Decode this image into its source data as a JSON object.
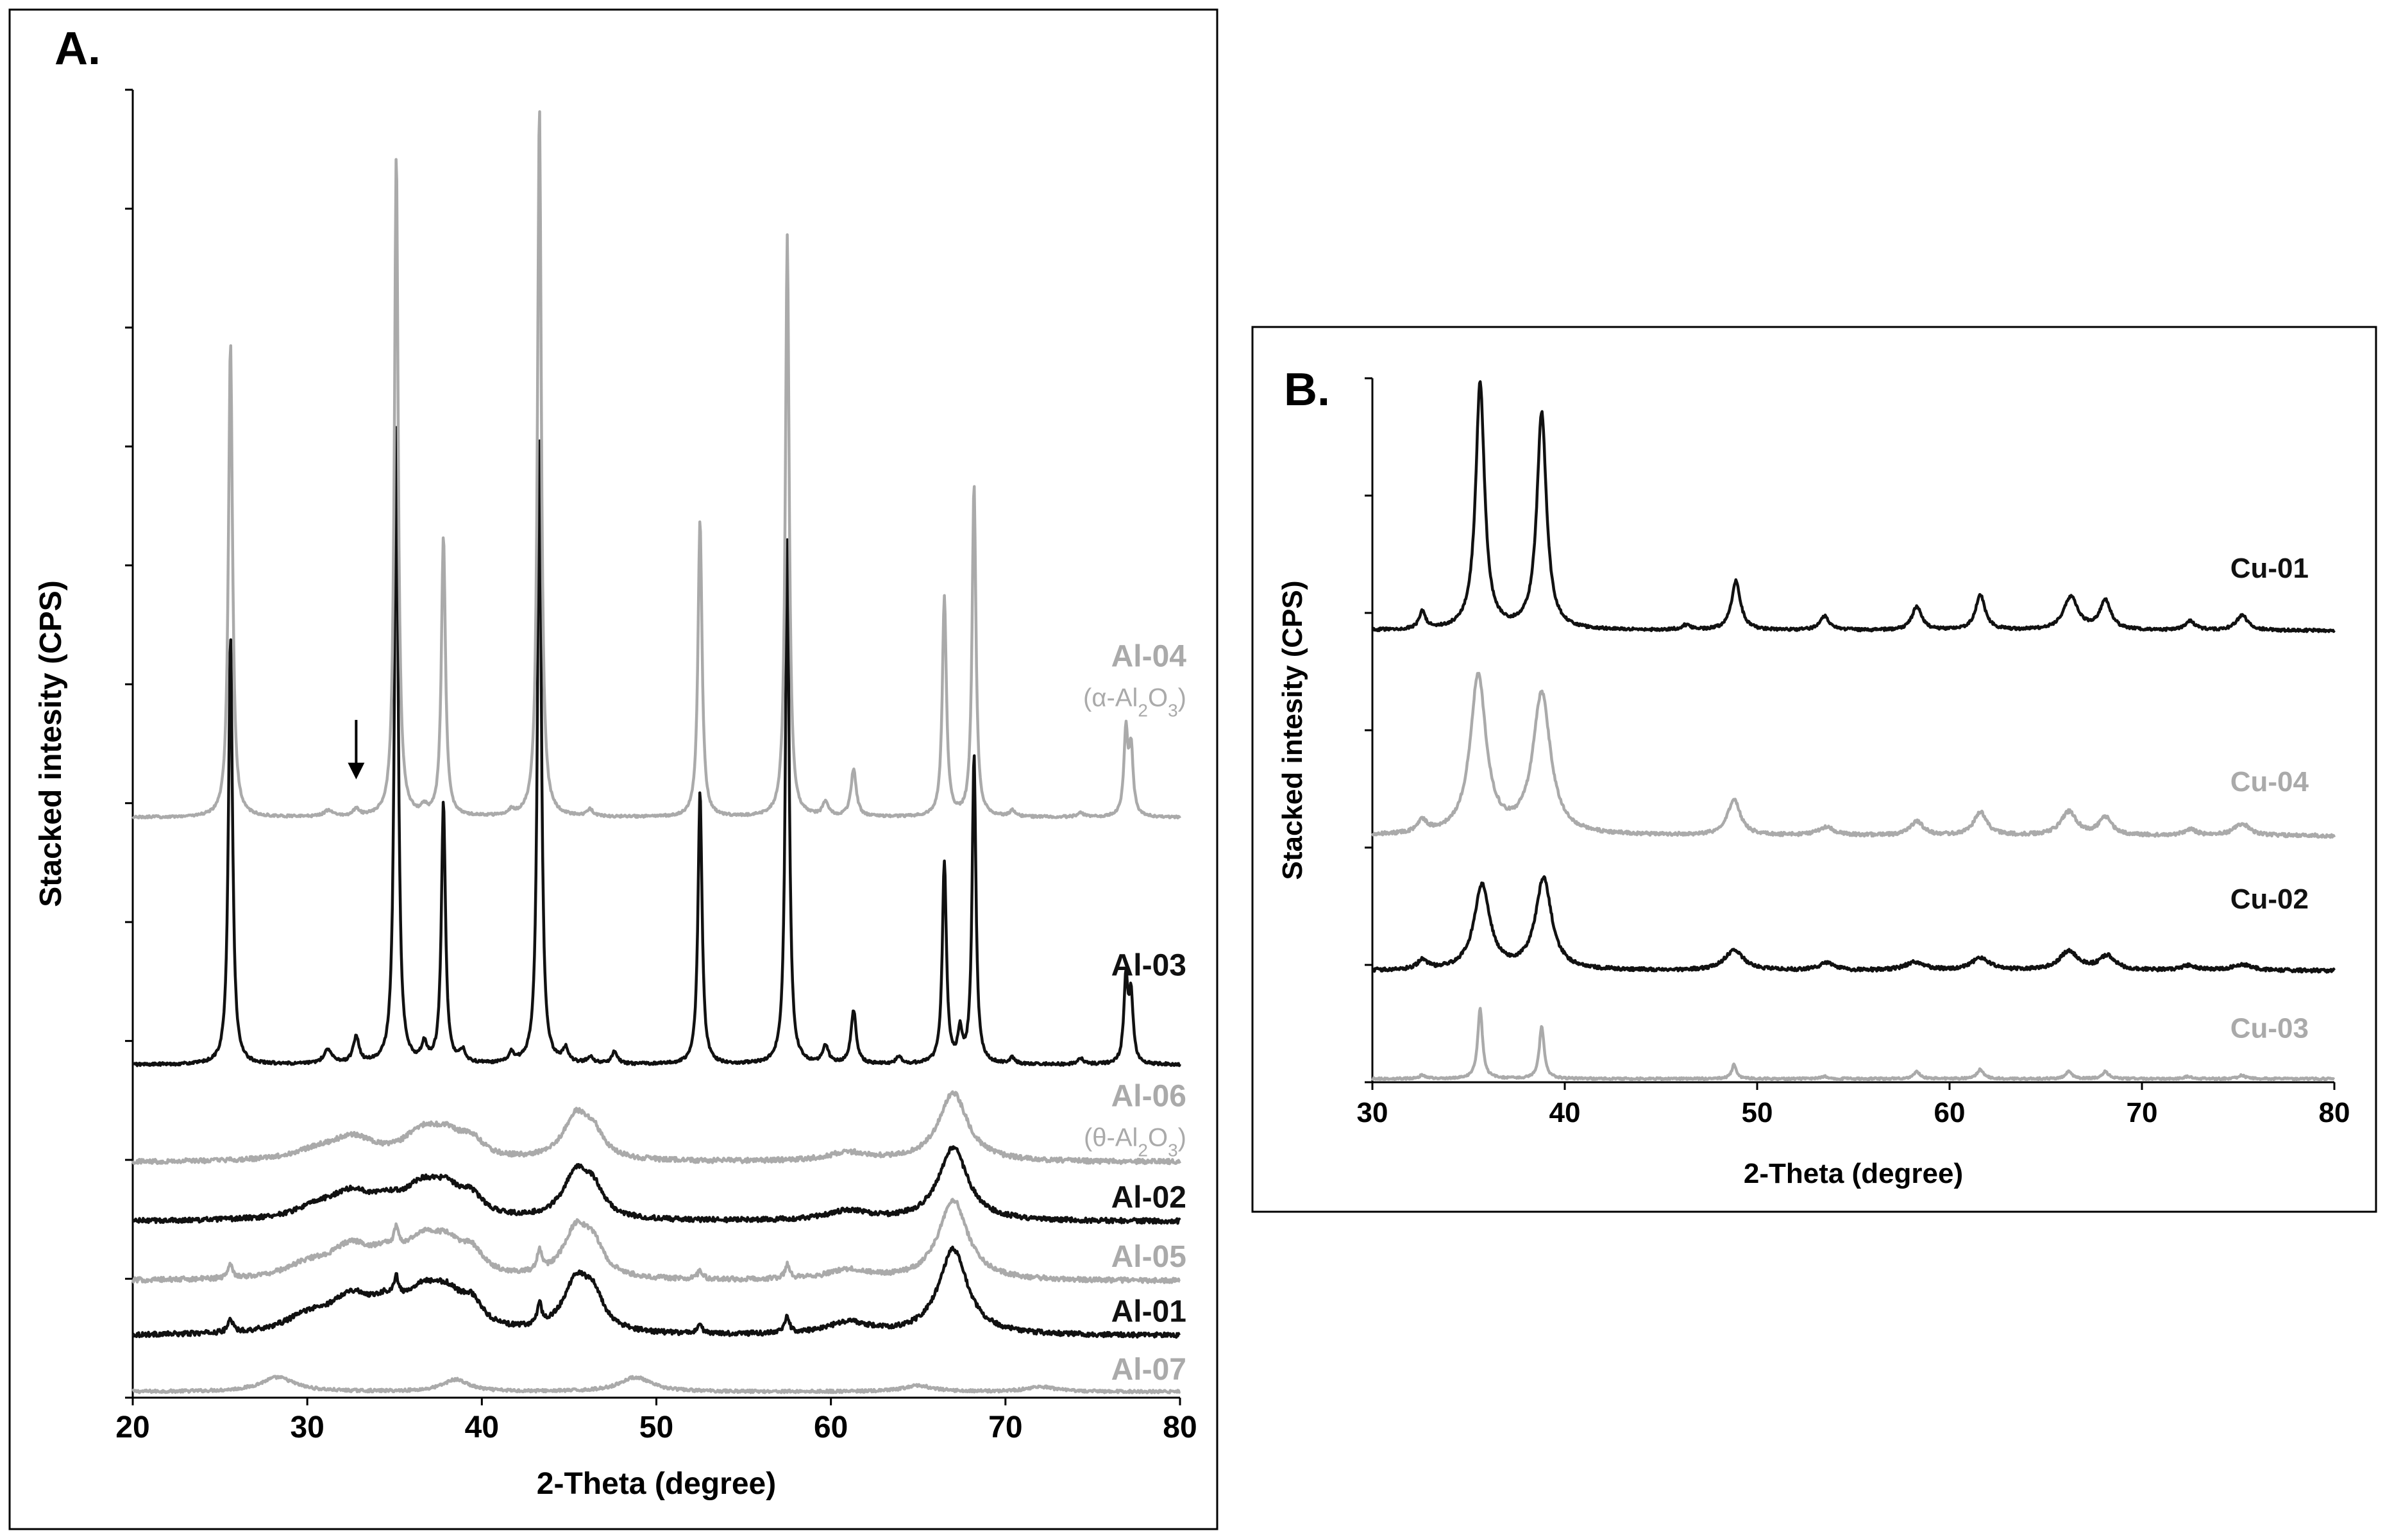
{
  "chart_data": [
    {
      "type": "line",
      "panel": "A.",
      "title": "",
      "xlabel": "2-Theta (degree)",
      "ylabel": "Stacked intesity (CPS)",
      "xlim": [
        20,
        80
      ],
      "x_ticks": [
        "20",
        "30",
        "40",
        "50",
        "60",
        "70",
        "80"
      ],
      "ylim": [
        0,
        11
      ],
      "y_tick_count": 11,
      "y_tick_labels_shown": false,
      "grid": false,
      "annotations": [
        {
          "type": "arrow",
          "x": 32.8,
          "y_from": 5.7,
          "y_to": 5.2
        }
      ],
      "series": [
        {
          "name": "Al-07",
          "phase": "",
          "color": "#aaaaaa",
          "baseline": 0.05,
          "noise": 0.012,
          "label_y": 0.15,
          "peaks": [
            [
              28.3,
              0.12,
              1.2
            ],
            [
              38.5,
              0.1,
              0.9
            ],
            [
              48.8,
              0.12,
              1.1
            ],
            [
              65.0,
              0.05,
              1.0
            ],
            [
              72.0,
              0.04,
              1.0
            ]
          ]
        },
        {
          "name": "Al-01",
          "phase": "",
          "color": "#111111",
          "baseline": 0.52,
          "noise": 0.02,
          "label_y": 0.64,
          "peaks": [
            [
              30.0,
              0.12,
              1.5
            ],
            [
              32.5,
              0.28,
              1.5
            ],
            [
              34.5,
              0.15,
              1.0
            ],
            [
              36.6,
              0.3,
              1.3
            ],
            [
              38.0,
              0.22,
              1.0
            ],
            [
              39.4,
              0.2,
              0.8
            ],
            [
              45.4,
              0.42,
              0.9
            ],
            [
              46.4,
              0.25,
              0.7
            ],
            [
              61.0,
              0.1,
              1.5
            ],
            [
              67.0,
              0.72,
              1.0
            ],
            [
              25.6,
              0.12,
              0.15
            ],
            [
              35.1,
              0.16,
              0.15
            ],
            [
              43.3,
              0.18,
              0.15
            ],
            [
              52.5,
              0.08,
              0.15
            ],
            [
              57.5,
              0.14,
              0.15
            ]
          ]
        },
        {
          "name": "Al-05",
          "phase": "",
          "color": "#aaaaaa",
          "baseline": 0.98,
          "noise": 0.02,
          "label_y": 1.1,
          "peaks": [
            [
              30.0,
              0.1,
              1.5
            ],
            [
              32.5,
              0.25,
              1.5
            ],
            [
              34.5,
              0.12,
              1.0
            ],
            [
              36.6,
              0.28,
              1.3
            ],
            [
              38.0,
              0.2,
              1.0
            ],
            [
              39.4,
              0.18,
              0.8
            ],
            [
              45.4,
              0.4,
              0.9
            ],
            [
              46.4,
              0.22,
              0.7
            ],
            [
              61.0,
              0.08,
              1.5
            ],
            [
              67.0,
              0.68,
              1.0
            ],
            [
              25.6,
              0.12,
              0.15
            ],
            [
              35.1,
              0.16,
              0.15
            ],
            [
              43.3,
              0.18,
              0.15
            ],
            [
              52.5,
              0.08,
              0.15
            ],
            [
              57.5,
              0.12,
              0.15
            ]
          ]
        },
        {
          "name": "Al-02",
          "phase": "",
          "color": "#111111",
          "baseline": 1.48,
          "noise": 0.02,
          "label_y": 1.6,
          "peaks": [
            [
              30.5,
              0.08,
              1.5
            ],
            [
              32.5,
              0.2,
              1.5
            ],
            [
              34.5,
              0.1,
              1.0
            ],
            [
              36.6,
              0.25,
              1.3
            ],
            [
              38.0,
              0.18,
              1.0
            ],
            [
              39.4,
              0.15,
              0.8
            ],
            [
              45.4,
              0.38,
              0.9
            ],
            [
              46.4,
              0.2,
              0.7
            ],
            [
              61.0,
              0.08,
              1.5
            ],
            [
              67.0,
              0.62,
              1.0
            ]
          ]
        },
        {
          "name": "Al-06",
          "phase": "(θ-Al2O3)",
          "color": "#aaaaaa",
          "baseline": 1.98,
          "noise": 0.02,
          "label_y": 2.45,
          "peaks": [
            [
              30.5,
              0.07,
              1.5
            ],
            [
              32.6,
              0.18,
              1.5
            ],
            [
              36.6,
              0.22,
              1.3
            ],
            [
              38.0,
              0.16,
              1.0
            ],
            [
              39.4,
              0.14,
              0.8
            ],
            [
              45.4,
              0.36,
              0.9
            ],
            [
              46.4,
              0.18,
              0.7
            ],
            [
              61.0,
              0.07,
              1.5
            ],
            [
              67.0,
              0.58,
              1.0
            ]
          ]
        },
        {
          "name": "Al-03",
          "phase": "",
          "color": "#111111",
          "baseline": 2.8,
          "noise": 0.012,
          "label_y": 3.55,
          "peaks": [
            [
              25.6,
              3.6,
              0.14
            ],
            [
              31.2,
              0.12,
              0.3
            ],
            [
              32.8,
              0.22,
              0.2
            ],
            [
              35.1,
              5.4,
              0.13
            ],
            [
              36.7,
              0.15,
              0.18
            ],
            [
              37.8,
              2.2,
              0.14
            ],
            [
              38.9,
              0.1,
              0.2
            ],
            [
              41.7,
              0.08,
              0.2
            ],
            [
              43.3,
              5.3,
              0.13
            ],
            [
              44.8,
              0.12,
              0.2
            ],
            [
              46.2,
              0.06,
              0.2
            ],
            [
              47.6,
              0.1,
              0.2
            ],
            [
              52.5,
              2.3,
              0.14
            ],
            [
              57.5,
              4.4,
              0.13
            ],
            [
              59.7,
              0.15,
              0.2
            ],
            [
              61.3,
              0.45,
              0.18
            ],
            [
              63.9,
              0.06,
              0.2
            ],
            [
              66.5,
              1.7,
              0.14
            ],
            [
              67.4,
              0.25,
              0.15
            ],
            [
              68.2,
              2.6,
              0.13
            ],
            [
              70.4,
              0.05,
              0.2
            ],
            [
              74.3,
              0.05,
              0.2
            ],
            [
              76.9,
              0.7,
              0.14
            ],
            [
              77.2,
              0.55,
              0.14
            ]
          ]
        },
        {
          "name": "Al-04",
          "phase": "(α-Al2O3)",
          "color": "#aaaaaa",
          "baseline": 4.88,
          "noise": 0.01,
          "label_y": 6.15,
          "peaks": [
            [
              25.6,
              4.0,
              0.14
            ],
            [
              31.2,
              0.05,
              0.3
            ],
            [
              32.8,
              0.06,
              0.2
            ],
            [
              35.1,
              5.6,
              0.13
            ],
            [
              36.7,
              0.06,
              0.18
            ],
            [
              37.8,
              2.35,
              0.14
            ],
            [
              41.7,
              0.04,
              0.2
            ],
            [
              43.3,
              6.0,
              0.13
            ],
            [
              46.2,
              0.06,
              0.2
            ],
            [
              52.5,
              2.5,
              0.14
            ],
            [
              57.5,
              4.9,
              0.13
            ],
            [
              59.7,
              0.12,
              0.2
            ],
            [
              61.3,
              0.4,
              0.18
            ],
            [
              66.5,
              1.85,
              0.14
            ],
            [
              68.2,
              2.8,
              0.13
            ],
            [
              70.4,
              0.05,
              0.2
            ],
            [
              74.3,
              0.04,
              0.2
            ],
            [
              76.9,
              0.7,
              0.14
            ],
            [
              77.2,
              0.55,
              0.14
            ]
          ]
        }
      ]
    },
    {
      "type": "line",
      "panel": "B.",
      "title": "",
      "xlabel": "2-Theta (degree)",
      "ylabel": "Stacked intesity (CPS)",
      "xlim": [
        30,
        80
      ],
      "x_ticks": [
        "30",
        "40",
        "50",
        "60",
        "70",
        "80"
      ],
      "ylim": [
        0,
        6
      ],
      "y_tick_count": 6,
      "y_tick_labels_shown": false,
      "grid": false,
      "series": [
        {
          "name": "Cu-03",
          "phase": "",
          "color": "#aaaaaa",
          "baseline": 0.03,
          "noise": 0.008,
          "label_y": 0.38,
          "peaks": [
            [
              32.6,
              0.03,
              0.2
            ],
            [
              35.6,
              0.6,
              0.15
            ],
            [
              38.8,
              0.45,
              0.15
            ],
            [
              48.8,
              0.12,
              0.15
            ],
            [
              53.5,
              0.02,
              0.2
            ],
            [
              58.3,
              0.06,
              0.2
            ],
            [
              61.6,
              0.08,
              0.2
            ],
            [
              66.2,
              0.06,
              0.2
            ],
            [
              68.1,
              0.06,
              0.2
            ],
            [
              72.4,
              0.02,
              0.2
            ],
            [
              75.2,
              0.03,
              0.2
            ]
          ]
        },
        {
          "name": "Cu-02",
          "phase": "",
          "color": "#111111",
          "baseline": 0.95,
          "noise": 0.015,
          "label_y": 1.48,
          "peaks": [
            [
              32.6,
              0.08,
              0.3
            ],
            [
              35.7,
              0.72,
              0.5
            ],
            [
              38.9,
              0.78,
              0.5
            ],
            [
              48.8,
              0.17,
              0.6
            ],
            [
              53.6,
              0.06,
              0.5
            ],
            [
              58.2,
              0.07,
              0.6
            ],
            [
              61.6,
              0.1,
              0.6
            ],
            [
              66.2,
              0.16,
              0.6
            ],
            [
              68.2,
              0.12,
              0.5
            ],
            [
              72.4,
              0.04,
              0.5
            ],
            [
              75.2,
              0.05,
              0.6
            ]
          ]
        },
        {
          "name": "Cu-04",
          "phase": "",
          "color": "#aaaaaa",
          "baseline": 2.1,
          "noise": 0.015,
          "label_y": 2.48,
          "peaks": [
            [
              32.6,
              0.1,
              0.3
            ],
            [
              35.5,
              1.35,
              0.5
            ],
            [
              38.8,
              1.2,
              0.55
            ],
            [
              48.8,
              0.3,
              0.4
            ],
            [
              53.6,
              0.07,
              0.5
            ],
            [
              58.3,
              0.12,
              0.4
            ],
            [
              61.6,
              0.2,
              0.4
            ],
            [
              66.2,
              0.2,
              0.5
            ],
            [
              68.1,
              0.15,
              0.4
            ],
            [
              72.5,
              0.05,
              0.4
            ],
            [
              75.2,
              0.1,
              0.5
            ]
          ]
        },
        {
          "name": "Cu-01",
          "phase": "",
          "color": "#111111",
          "baseline": 3.85,
          "noise": 0.012,
          "label_y": 4.3,
          "peaks": [
            [
              32.6,
              0.15,
              0.2
            ],
            [
              35.6,
              2.1,
              0.28
            ],
            [
              38.8,
              1.85,
              0.3
            ],
            [
              46.3,
              0.04,
              0.3
            ],
            [
              48.9,
              0.42,
              0.28
            ],
            [
              53.5,
              0.12,
              0.3
            ],
            [
              58.3,
              0.2,
              0.3
            ],
            [
              61.6,
              0.3,
              0.3
            ],
            [
              66.3,
              0.28,
              0.45
            ],
            [
              68.1,
              0.25,
              0.35
            ],
            [
              72.5,
              0.08,
              0.3
            ],
            [
              75.2,
              0.13,
              0.35
            ]
          ]
        }
      ]
    }
  ]
}
